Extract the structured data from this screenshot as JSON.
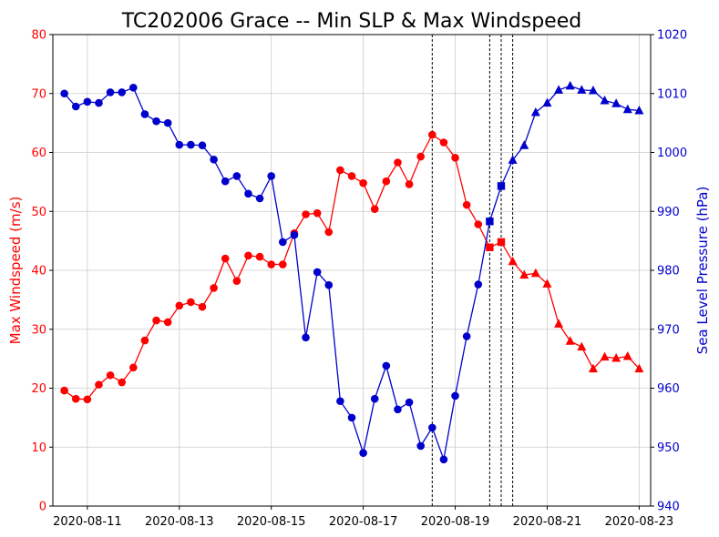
{
  "chart_data": {
    "type": "line",
    "title": "TC202006 Grace -- Min SLP & Max Windspeed",
    "x_ticks": [
      "2020-08-11",
      "2020-08-13",
      "2020-08-15",
      "2020-08-17",
      "2020-08-19",
      "2020-08-21",
      "2020-08-23"
    ],
    "xlim": [
      "2020-08-10T06:00",
      "2020-08-23T06:00"
    ],
    "grid": true,
    "left_axis": {
      "label": "Max Windspeed (m/s)",
      "ylim": [
        0,
        80
      ],
      "ticks": [
        "0",
        "10",
        "20",
        "30",
        "40",
        "50",
        "60",
        "70",
        "80"
      ],
      "color": "#ff0000"
    },
    "right_axis": {
      "label": "Sea Level Pressure (hPa)",
      "ylim": [
        940,
        1020
      ],
      "ticks": [
        "940",
        "950",
        "960",
        "970",
        "980",
        "990",
        "1000",
        "1010",
        "1020"
      ],
      "color": "#0000cc"
    },
    "vlines": [
      "2020-08-18T12:00",
      "2020-08-19T18:00",
      "2020-08-20T00:00",
      "2020-08-20T06:00"
    ],
    "series": [
      {
        "axis": "left",
        "color": "#ff0000",
        "x": [
          "2020-08-10T12:00",
          "2020-08-10T18:00",
          "2020-08-11T00:00",
          "2020-08-11T06:00",
          "2020-08-11T12:00",
          "2020-08-11T18:00",
          "2020-08-12T00:00",
          "2020-08-12T06:00",
          "2020-08-12T12:00",
          "2020-08-12T18:00",
          "2020-08-13T00:00",
          "2020-08-13T06:00",
          "2020-08-13T12:00",
          "2020-08-13T18:00",
          "2020-08-14T00:00",
          "2020-08-14T06:00",
          "2020-08-14T12:00",
          "2020-08-14T18:00",
          "2020-08-15T00:00",
          "2020-08-15T06:00",
          "2020-08-15T12:00",
          "2020-08-15T18:00",
          "2020-08-16T00:00",
          "2020-08-16T06:00",
          "2020-08-16T12:00",
          "2020-08-16T18:00",
          "2020-08-17T00:00",
          "2020-08-17T06:00",
          "2020-08-17T12:00",
          "2020-08-17T18:00",
          "2020-08-18T00:00",
          "2020-08-18T06:00",
          "2020-08-18T12:00",
          "2020-08-18T18:00",
          "2020-08-19T00:00",
          "2020-08-19T06:00",
          "2020-08-19T12:00",
          "2020-08-19T18:00",
          "2020-08-20T00:00",
          "2020-08-20T06:00",
          "2020-08-20T12:00",
          "2020-08-20T18:00",
          "2020-08-21T00:00",
          "2020-08-21T06:00",
          "2020-08-21T12:00",
          "2020-08-21T18:00",
          "2020-08-22T00:00",
          "2020-08-22T06:00",
          "2020-08-22T12:00",
          "2020-08-22T18:00",
          "2020-08-23T00:00"
        ],
        "values": [
          19.6,
          18.2,
          18.1,
          20.6,
          22.2,
          21.0,
          23.5,
          28.1,
          31.5,
          31.2,
          34.0,
          34.6,
          33.8,
          37.0,
          42.0,
          38.2,
          42.5,
          42.3,
          41.0,
          41.0,
          46.3,
          49.5,
          49.7,
          46.5,
          57.0,
          56.0,
          54.8,
          50.4,
          55.1,
          58.3,
          54.6,
          59.3,
          63.0,
          61.7,
          59.1,
          51.1,
          47.8,
          43.9,
          44.8,
          41.5,
          39.2,
          39.5,
          37.7,
          30.9,
          28.0,
          27.0,
          23.3,
          25.3,
          25.1,
          25.4,
          23.3
        ],
        "markers": [
          "circle",
          "circle",
          "circle",
          "circle",
          "circle",
          "circle",
          "circle",
          "circle",
          "circle",
          "circle",
          "circle",
          "circle",
          "circle",
          "circle",
          "circle",
          "circle",
          "circle",
          "circle",
          "circle",
          "circle",
          "circle",
          "circle",
          "circle",
          "circle",
          "circle",
          "circle",
          "circle",
          "circle",
          "circle",
          "circle",
          "circle",
          "circle",
          "circle",
          "circle",
          "circle",
          "circle",
          "circle",
          "square",
          "square",
          "triangle",
          "triangle",
          "triangle",
          "triangle",
          "triangle",
          "triangle",
          "triangle",
          "triangle",
          "triangle",
          "triangle",
          "triangle",
          "triangle"
        ]
      },
      {
        "axis": "right",
        "color": "#0000cc",
        "x": [
          "2020-08-10T12:00",
          "2020-08-10T18:00",
          "2020-08-11T00:00",
          "2020-08-11T06:00",
          "2020-08-11T12:00",
          "2020-08-11T18:00",
          "2020-08-12T00:00",
          "2020-08-12T06:00",
          "2020-08-12T12:00",
          "2020-08-12T18:00",
          "2020-08-13T00:00",
          "2020-08-13T06:00",
          "2020-08-13T12:00",
          "2020-08-13T18:00",
          "2020-08-14T00:00",
          "2020-08-14T06:00",
          "2020-08-14T12:00",
          "2020-08-14T18:00",
          "2020-08-15T00:00",
          "2020-08-15T06:00",
          "2020-08-15T12:00",
          "2020-08-15T18:00",
          "2020-08-16T00:00",
          "2020-08-16T06:00",
          "2020-08-16T12:00",
          "2020-08-16T18:00",
          "2020-08-17T00:00",
          "2020-08-17T06:00",
          "2020-08-17T12:00",
          "2020-08-17T18:00",
          "2020-08-18T00:00",
          "2020-08-18T06:00",
          "2020-08-18T12:00",
          "2020-08-18T18:00",
          "2020-08-19T00:00",
          "2020-08-19T06:00",
          "2020-08-19T12:00",
          "2020-08-19T18:00",
          "2020-08-20T00:00",
          "2020-08-20T06:00",
          "2020-08-20T12:00",
          "2020-08-20T18:00",
          "2020-08-21T00:00",
          "2020-08-21T06:00",
          "2020-08-21T12:00",
          "2020-08-21T18:00",
          "2020-08-22T00:00",
          "2020-08-22T06:00",
          "2020-08-22T12:00",
          "2020-08-22T18:00",
          "2020-08-23T00:00"
        ],
        "values": [
          1010.0,
          1007.8,
          1008.6,
          1008.4,
          1010.2,
          1010.2,
          1011.0,
          1006.5,
          1005.3,
          1005.0,
          1001.3,
          1001.3,
          1001.2,
          998.8,
          995.1,
          996.0,
          993.0,
          992.2,
          996.0,
          984.8,
          986.0,
          968.6,
          979.7,
          977.5,
          957.8,
          955.0,
          949.0,
          958.2,
          963.8,
          956.4,
          957.6,
          950.2,
          953.3,
          947.9,
          958.7,
          968.8,
          977.6,
          988.3,
          994.3,
          998.7,
          1001.2,
          1006.8,
          1008.4,
          1010.6,
          1011.3,
          1010.6,
          1010.5,
          1008.8,
          1008.3,
          1007.3,
          1007.1
        ],
        "markers": [
          "circle",
          "circle",
          "circle",
          "circle",
          "circle",
          "circle",
          "circle",
          "circle",
          "circle",
          "circle",
          "circle",
          "circle",
          "circle",
          "circle",
          "circle",
          "circle",
          "circle",
          "circle",
          "circle",
          "circle",
          "circle",
          "circle",
          "circle",
          "circle",
          "circle",
          "circle",
          "circle",
          "circle",
          "circle",
          "circle",
          "circle",
          "circle",
          "circle",
          "circle",
          "circle",
          "circle",
          "circle",
          "square",
          "square",
          "triangle",
          "triangle",
          "triangle",
          "triangle",
          "triangle",
          "triangle",
          "triangle",
          "triangle",
          "triangle",
          "triangle",
          "triangle",
          "triangle"
        ]
      }
    ]
  }
}
